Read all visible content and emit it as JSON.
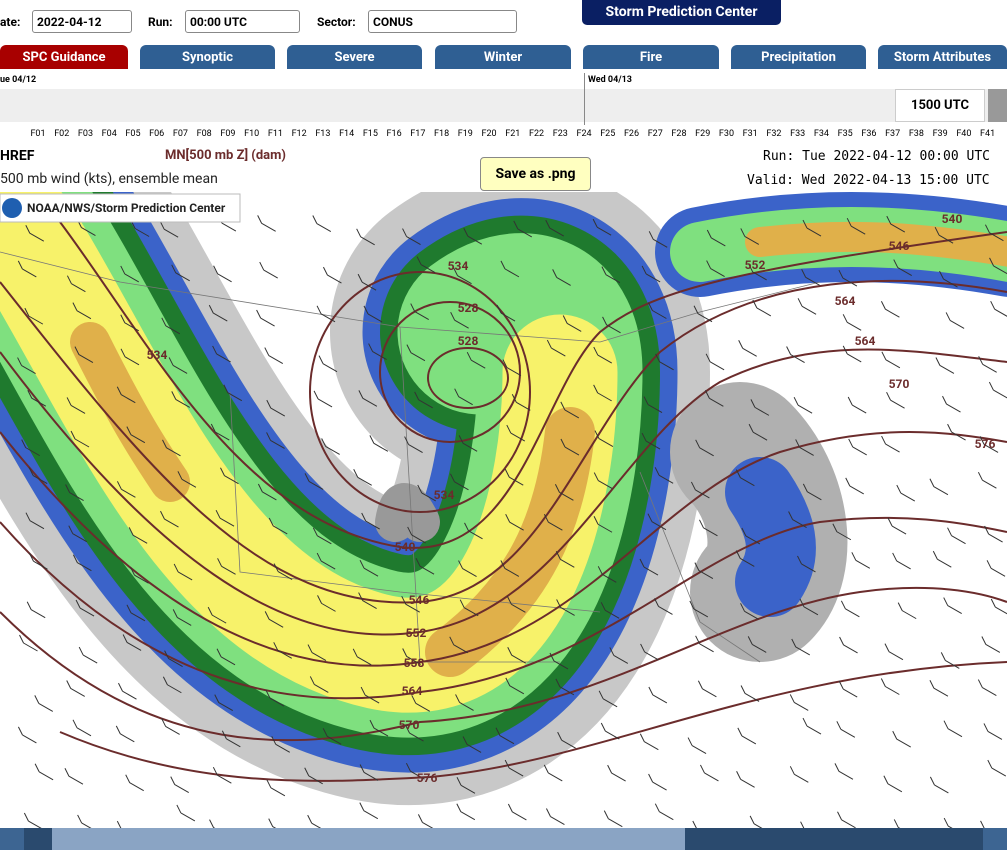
{
  "controls": {
    "date_label": "ate:",
    "date_value": "2022-04-12",
    "run_label": "Run:",
    "run_value": "00:00 UTC",
    "sector_label": "Sector:",
    "sector_value": "CONUS",
    "home_button": "Storm Prediction Center"
  },
  "tabs": [
    "SPC Guidance",
    "Synoptic",
    "Severe",
    "Winter",
    "Fire",
    "Precipitation",
    "Storm Attributes"
  ],
  "timeline": {
    "day1": "ue 04/12",
    "day2": "Wed 04/13",
    "current": "1500 UTC",
    "hours": [
      "F01",
      "F02",
      "F03",
      "F04",
      "F05",
      "F06",
      "F07",
      "F08",
      "F09",
      "F10",
      "F11",
      "F12",
      "F13",
      "F14",
      "F15",
      "F16",
      "F17",
      "F18",
      "F19",
      "F20",
      "F21",
      "F22",
      "F23",
      "F24",
      "F25",
      "F26",
      "F27",
      "F28",
      "F29",
      "F30",
      "F31",
      "F32",
      "F33",
      "F34",
      "F35",
      "F36",
      "F37",
      "F38",
      "F39",
      "F40",
      "F41",
      "F"
    ]
  },
  "product": {
    "model": "HREF",
    "field": "MN[500 mb Z] (dam)",
    "subfield": "500 mb wind (kts), ensemble mean",
    "run": "Run: Tue 2022-04-12 00:00 UTC",
    "valid": "Valid: Wed 2022-04-13 15:00 UTC",
    "save_button": "Save as .png",
    "credit": "NOAA/NWS/Storm Prediction Center"
  },
  "map": {
    "contour_labels": [
      "534",
      "528",
      "528",
      "534",
      "534",
      "540",
      "546",
      "552",
      "558",
      "564",
      "570",
      "576",
      "552",
      "546",
      "540",
      "564",
      "564",
      "570",
      "576"
    ]
  }
}
